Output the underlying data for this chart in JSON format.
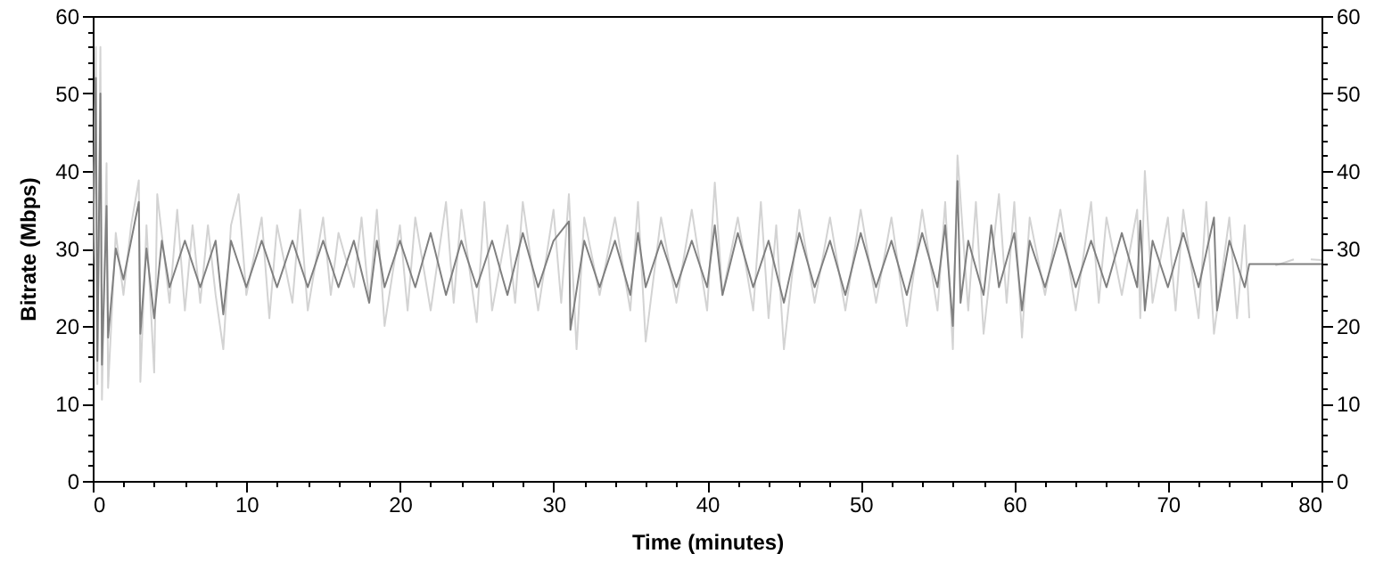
{
  "chart_data": {
    "type": "line",
    "xlabel": "Time (minutes)",
    "ylabel": "Bitrate (Mbps)",
    "xlim": [
      0,
      80
    ],
    "ylim": [
      0,
      60
    ],
    "y2lim": [
      0,
      60
    ],
    "xticks": [
      0,
      {
        "value": 2,
        "label": null
      },
      {
        "value": 4,
        "label": null
      },
      {
        "value": 6,
        "label": null
      },
      {
        "value": 8,
        "label": null
      },
      10,
      {
        "value": 12,
        "label": null
      },
      {
        "value": 14,
        "label": null
      },
      {
        "value": 16,
        "label": null
      },
      {
        "value": 18,
        "label": null
      },
      20,
      {
        "value": 22,
        "label": null
      },
      {
        "value": 24,
        "label": null
      },
      {
        "value": 26,
        "label": null
      },
      {
        "value": 28,
        "label": null
      },
      30,
      {
        "value": 32,
        "label": null
      },
      {
        "value": 34,
        "label": null
      },
      {
        "value": 36,
        "label": null
      },
      {
        "value": 38,
        "label": null
      },
      40,
      {
        "value": 42,
        "label": null
      },
      {
        "value": 44,
        "label": null
      },
      {
        "value": 46,
        "label": null
      },
      {
        "value": 48,
        "label": null
      },
      50,
      {
        "value": 52,
        "label": null
      },
      {
        "value": 54,
        "label": null
      },
      {
        "value": 56,
        "label": null
      },
      {
        "value": 58,
        "label": null
      },
      60,
      {
        "value": 62,
        "label": null
      },
      {
        "value": 64,
        "label": null
      },
      {
        "value": 66,
        "label": null
      },
      {
        "value": 68,
        "label": null
      },
      70,
      {
        "value": 72,
        "label": null
      },
      {
        "value": 74,
        "label": null
      },
      {
        "value": 76,
        "label": null
      },
      {
        "value": 78,
        "label": null
      },
      80
    ],
    "yticks": [
      0,
      {
        "value": 2,
        "label": null
      },
      {
        "value": 4,
        "label": null
      },
      {
        "value": 6,
        "label": null
      },
      {
        "value": 8,
        "label": null
      },
      10,
      {
        "value": 12,
        "label": null
      },
      {
        "value": 14,
        "label": null
      },
      {
        "value": 16,
        "label": null
      },
      {
        "value": 18,
        "label": null
      },
      20,
      {
        "value": 22,
        "label": null
      },
      {
        "value": 24,
        "label": null
      },
      {
        "value": 26,
        "label": null
      },
      {
        "value": 28,
        "label": null
      },
      30,
      {
        "value": 32,
        "label": null
      },
      {
        "value": 34,
        "label": null
      },
      {
        "value": 36,
        "label": null
      },
      {
        "value": 38,
        "label": null
      },
      40,
      {
        "value": 42,
        "label": null
      },
      {
        "value": 44,
        "label": null
      },
      {
        "value": 46,
        "label": null
      },
      {
        "value": 48,
        "label": null
      },
      50,
      {
        "value": 52,
        "label": null
      },
      {
        "value": 54,
        "label": null
      },
      {
        "value": 56,
        "label": null
      },
      {
        "value": 58,
        "label": null
      },
      60
    ],
    "y2ticks": [
      0,
      {
        "value": 2,
        "label": null
      },
      {
        "value": 4,
        "label": null
      },
      {
        "value": 6,
        "label": null
      },
      {
        "value": 8,
        "label": null
      },
      10,
      {
        "value": 12,
        "label": null
      },
      {
        "value": 14,
        "label": null
      },
      {
        "value": 16,
        "label": null
      },
      {
        "value": 18,
        "label": null
      },
      20,
      {
        "value": 22,
        "label": null
      },
      {
        "value": 24,
        "label": null
      },
      {
        "value": 26,
        "label": null
      },
      {
        "value": 28,
        "label": null
      },
      30,
      {
        "value": 32,
        "label": null
      },
      {
        "value": 34,
        "label": null
      },
      {
        "value": 36,
        "label": null
      },
      {
        "value": 38,
        "label": null
      },
      40,
      {
        "value": 42,
        "label": null
      },
      {
        "value": 44,
        "label": null
      },
      {
        "value": 46,
        "label": null
      },
      {
        "value": 48,
        "label": null
      },
      50,
      {
        "value": 52,
        "label": null
      },
      {
        "value": 54,
        "label": null
      },
      {
        "value": 56,
        "label": null
      },
      {
        "value": 58,
        "label": null
      },
      60
    ],
    "grid": false,
    "marker": "none",
    "line_style": "solid",
    "series": [
      {
        "color": "#d3d3d3",
        "x": [
          0,
          0.2,
          0.3,
          0.5,
          0.6,
          0.9,
          1.0,
          1.5,
          2,
          2.5,
          3.0,
          3.1,
          3.5,
          4.0,
          4.2,
          5,
          5.5,
          6,
          6.5,
          7,
          7.5,
          8,
          8.5,
          9,
          9.5,
          10,
          11,
          11.5,
          12,
          13,
          13.5,
          14,
          15,
          15.5,
          16,
          17,
          17.5,
          18,
          18.5,
          19,
          20,
          20.5,
          21,
          22,
          23,
          23.5,
          24,
          25,
          25.5,
          26,
          27,
          27.5,
          28,
          29,
          30,
          30.5,
          31,
          31.5,
          32,
          33,
          34,
          35,
          35.5,
          36,
          37,
          38,
          39,
          40,
          40.5,
          41,
          42,
          43,
          43.5,
          44,
          44.5,
          45,
          46,
          47,
          48,
          49,
          50,
          51,
          52,
          53,
          54,
          55,
          55.5,
          56,
          56.3,
          57,
          57.5,
          58,
          59,
          59.5,
          60,
          60.5,
          61,
          62,
          63,
          64,
          65,
          65.5,
          66,
          67,
          68,
          68.2,
          68.5,
          69,
          70,
          70.5,
          71,
          72,
          72.5,
          73,
          74,
          74.5,
          75,
          75.3,
          76,
          77,
          78.2,
          78.5,
          79.3,
          80
        ],
        "values": [
          28,
          56,
          12.5,
          56,
          10.5,
          41,
          12,
          32,
          24,
          33,
          38.8,
          12.8,
          33,
          14,
          37,
          23,
          35,
          22,
          33,
          23,
          33,
          24,
          17,
          33,
          37,
          24,
          34,
          21,
          33,
          23,
          35,
          22,
          34,
          24,
          32,
          25,
          34,
          23,
          35,
          20,
          33,
          22,
          34,
          22,
          36,
          23,
          35,
          20.5,
          36,
          22,
          33,
          23,
          36,
          22,
          35,
          23,
          37,
          17,
          34,
          24,
          34,
          22,
          36,
          18,
          34,
          23,
          35,
          22,
          38.5,
          24,
          34,
          22,
          36,
          21,
          33,
          17,
          35,
          23,
          34,
          22,
          35,
          23,
          34,
          20,
          35,
          22,
          36,
          17,
          42,
          22,
          36,
          19,
          37,
          23,
          36,
          18.5,
          34,
          24,
          35,
          22,
          36,
          23,
          34,
          24,
          35,
          21,
          40,
          23,
          34,
          22,
          35,
          21,
          36,
          19,
          34,
          21,
          33,
          21,
          null,
          27.8,
          28.6,
          null,
          28.6,
          28.5
        ]
      },
      {
        "color": "#808080",
        "x": [
          0,
          0.2,
          0.3,
          0.5,
          0.6,
          0.9,
          1.0,
          1.5,
          2,
          3,
          3.1,
          3.5,
          4,
          4.5,
          5,
          6,
          7,
          8,
          8.5,
          9,
          10,
          11,
          12,
          13,
          14,
          15,
          16,
          17,
          18,
          18.5,
          19,
          20,
          21,
          22,
          23,
          24,
          25,
          26,
          27,
          28,
          29,
          30,
          31,
          31.1,
          32,
          33,
          34,
          35,
          35.5,
          36,
          37,
          38,
          39,
          40,
          40.5,
          41,
          42,
          43,
          44,
          45,
          46,
          47,
          48,
          49,
          50,
          51,
          52,
          53,
          54,
          55,
          55.5,
          56,
          56.3,
          56.5,
          57,
          58,
          58.5,
          59,
          60,
          60.5,
          61,
          62,
          63,
          64,
          65,
          66,
          67,
          68,
          68.2,
          68.5,
          69,
          70,
          71,
          72,
          73,
          73.2,
          74,
          75,
          75.3,
          80
        ],
        "values": [
          28,
          52,
          15.5,
          50,
          15,
          35.5,
          18.5,
          30,
          26,
          36,
          19,
          30,
          21,
          31,
          25,
          31,
          25,
          31,
          21.5,
          31,
          25,
          31,
          25,
          31,
          25,
          31,
          25,
          31,
          23,
          31,
          25,
          31,
          25,
          32,
          24,
          31,
          25,
          31,
          24,
          32,
          25,
          31,
          33.5,
          19.5,
          31,
          25,
          31,
          24,
          32,
          25,
          31,
          25,
          31,
          25,
          33,
          24,
          32,
          25,
          31,
          23,
          32,
          25,
          31,
          24,
          32,
          25,
          31,
          24,
          32,
          25,
          33,
          20,
          38.7,
          23,
          31,
          24,
          33,
          25,
          32,
          22,
          31,
          25,
          32,
          25,
          31,
          25,
          32,
          25,
          33.6,
          22,
          31,
          25,
          32,
          25,
          34,
          22,
          31,
          25,
          28,
          28
        ]
      }
    ]
  }
}
